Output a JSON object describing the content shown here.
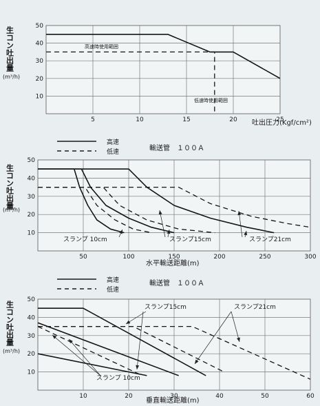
{
  "chart_data": [
    {
      "type": "line",
      "ylabel": "生コン吐出量",
      "yunit": "(m³/h)",
      "xlabel": "吐出圧力(Kgf/cm²)",
      "xlim": [
        0,
        25
      ],
      "ylim": [
        0,
        50
      ],
      "xticks": [
        5,
        10,
        15,
        20,
        25
      ],
      "yticks": [
        10,
        20,
        30,
        40,
        50
      ],
      "series": [
        {
          "style": "high",
          "x": [
            0,
            13,
            17.5,
            20,
            25
          ],
          "y": [
            45,
            45,
            35,
            35,
            20
          ]
        },
        {
          "style": "low",
          "x": [
            0,
            18,
            18
          ],
          "y": [
            35,
            35,
            0
          ]
        }
      ],
      "annotations": [
        {
          "text": "高速時使用範囲",
          "x": 12.5,
          "y": 38
        },
        {
          "text": "低速時使用範囲",
          "x": 23,
          "y": 6
        }
      ]
    },
    {
      "type": "line",
      "legend": {
        "high": "高速",
        "low": "低速"
      },
      "pipe_label": "輸送管　１００Ａ",
      "ylabel": "生コン吐出量",
      "yunit": "(m³/h)",
      "xlabel": "水平輸送距離(m)",
      "xlim": [
        0,
        300
      ],
      "ylim": [
        0,
        50
      ],
      "xticks": [
        50,
        100,
        150,
        200,
        250,
        300
      ],
      "yticks": [
        10,
        20,
        30,
        40,
        50
      ],
      "series": [
        {
          "style": "high",
          "slump": "10",
          "x": [
            0,
            40,
            46,
            55,
            65,
            80,
            95
          ],
          "y": [
            45,
            45,
            35,
            25,
            17,
            12,
            10
          ]
        },
        {
          "style": "high",
          "slump": "15",
          "x": [
            0,
            48,
            58,
            75,
            100,
            125,
            150
          ],
          "y": [
            45,
            45,
            35,
            25,
            18,
            13,
            10
          ]
        },
        {
          "style": "high",
          "slump": "21",
          "x": [
            0,
            100,
            120,
            150,
            190,
            230,
            260
          ],
          "y": [
            45,
            45,
            35,
            25,
            18,
            13,
            10
          ]
        },
        {
          "style": "low",
          "slump": "10",
          "x": [
            0,
            52,
            65,
            85,
            105,
            125
          ],
          "y": [
            35,
            35,
            25,
            17,
            12,
            10
          ]
        },
        {
          "style": "low",
          "slump": "15",
          "x": [
            0,
            72,
            90,
            120,
            155,
            195
          ],
          "y": [
            35,
            35,
            25,
            17,
            12,
            10
          ]
        },
        {
          "style": "low",
          "slump": "21",
          "x": [
            0,
            155,
            190,
            235,
            275,
            300
          ],
          "y": [
            35,
            35,
            26,
            19,
            15,
            13
          ]
        }
      ],
      "slump_labels": [
        "スランプ 10cm",
        "スランプ15cm",
        "スランプ21cm"
      ]
    },
    {
      "type": "line",
      "legend": {
        "high": "高速",
        "low": "低速"
      },
      "pipe_label": "輸送管　１００Ａ",
      "ylabel": "生コン吐出量",
      "yunit": "(m³/h)",
      "xlabel": "垂直輸送距離(m)",
      "xlim": [
        0,
        60
      ],
      "ylim": [
        0,
        50
      ],
      "xticks": [
        10,
        20,
        30,
        40,
        50,
        60
      ],
      "yticks": [
        10,
        20,
        30,
        40,
        50
      ],
      "series": [
        {
          "style": "high",
          "slump": "10",
          "x": [
            0,
            24
          ],
          "y": [
            20,
            8
          ]
        },
        {
          "style": "high",
          "slump": "15",
          "x": [
            0,
            31
          ],
          "y": [
            37,
            8
          ]
        },
        {
          "style": "high",
          "slump": "21",
          "x": [
            0,
            10,
            37
          ],
          "y": [
            45,
            45,
            8
          ]
        },
        {
          "style": "low",
          "slump": "10",
          "x": [
            0,
            23
          ],
          "y": [
            35,
            8
          ]
        },
        {
          "style": "low",
          "slump": "15",
          "x": [
            0,
            21,
            41
          ],
          "y": [
            35,
            35,
            10
          ]
        },
        {
          "style": "low",
          "slump": "21",
          "x": [
            0,
            34,
            60
          ],
          "y": [
            35,
            35,
            6
          ]
        }
      ],
      "slump_labels": [
        "スランプ15cm",
        "スランプ21cm",
        "スランプ 10cm"
      ]
    }
  ]
}
